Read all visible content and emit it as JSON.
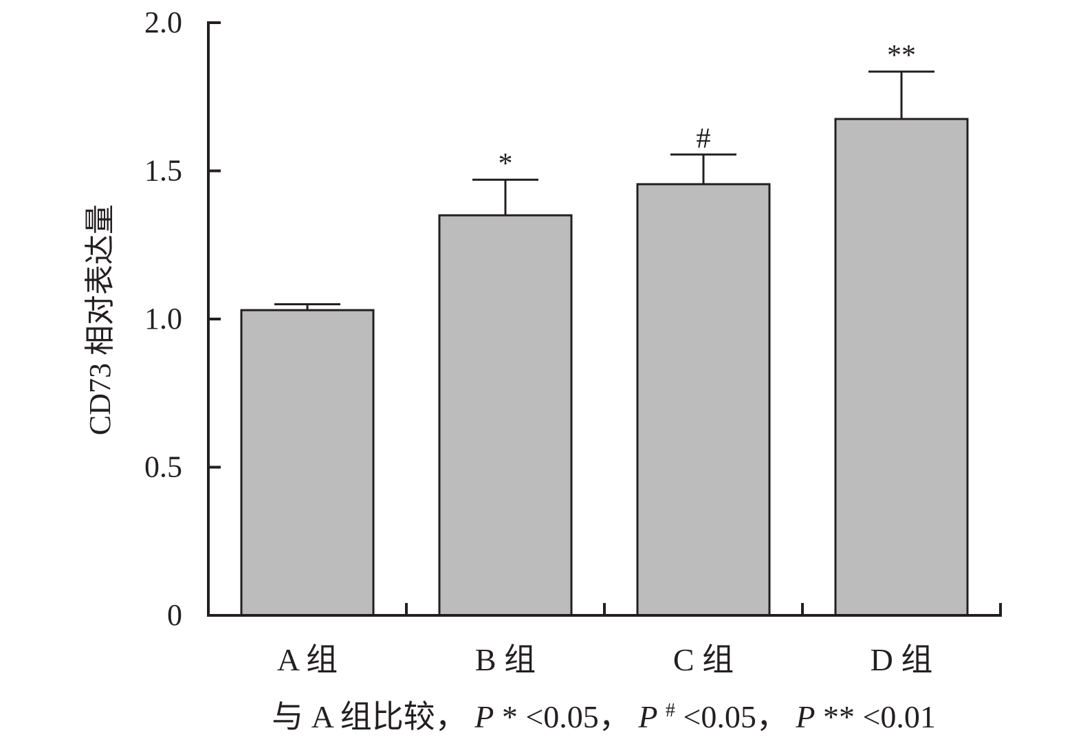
{
  "chart_data": {
    "type": "bar",
    "categories": [
      "A 组",
      "B 组",
      "C 组",
      "D 组"
    ],
    "values": [
      1.03,
      1.35,
      1.455,
      1.675
    ],
    "errors": [
      0.02,
      0.12,
      0.1,
      0.16
    ],
    "significance": [
      "",
      "*",
      "#",
      "**"
    ],
    "ylabel": "CD73 相对表达量",
    "ylim": [
      0,
      2.0
    ],
    "yticks": [
      0,
      0.5,
      1.0,
      1.5,
      2.0
    ],
    "ytick_labels": [
      "0",
      "0.5",
      "1.0",
      "1.5",
      "2.0"
    ],
    "bar_color": "#bcbcbc",
    "edge_color": "#231f20",
    "grid": false
  },
  "footnote": {
    "prefix": "与 A 组比较，",
    "items": [
      {
        "p": "P",
        "mark": "*",
        "rest": "<0.05，"
      },
      {
        "p": "P",
        "mark": "#",
        "rest": "<0.05，"
      },
      {
        "p": "P",
        "mark": "**",
        "rest": "<0.01"
      }
    ]
  }
}
